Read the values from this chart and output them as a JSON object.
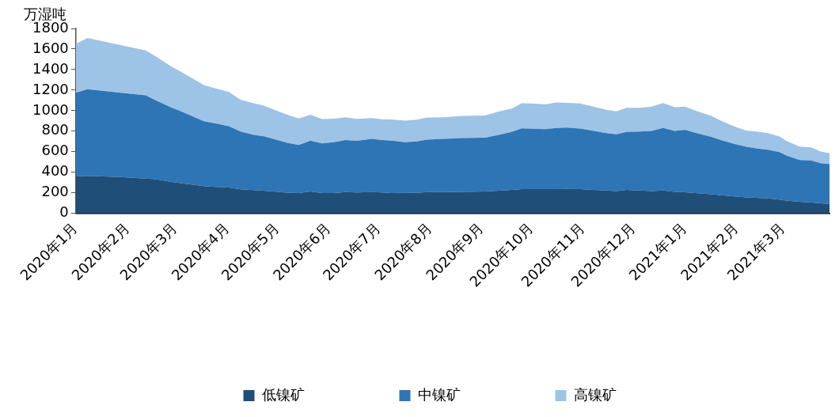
{
  "chart_data": {
    "type": "area",
    "stacked": true,
    "ylabel": "万湿吨",
    "legend": "bottom",
    "grid": false,
    "x": [
      "2020-01-01",
      "2020-01-08",
      "2020-01-28",
      "2020-02-12",
      "2020-02-18",
      "2020-02-27",
      "2020-03-04",
      "2020-03-18",
      "2020-03-25",
      "2020-04-02",
      "2020-04-09",
      "2020-04-17",
      "2020-04-23",
      "2020-05-07",
      "2020-05-14",
      "2020-05-21",
      "2020-05-28",
      "2020-06-04",
      "2020-06-11",
      "2020-06-18",
      "2020-06-27",
      "2020-07-03",
      "2020-07-09",
      "2020-07-17",
      "2020-07-24",
      "2020-07-30",
      "2020-08-09",
      "2020-08-20",
      "2020-09-03",
      "2020-09-11",
      "2020-09-19",
      "2020-09-25",
      "2020-10-03",
      "2020-10-09",
      "2020-10-16",
      "2020-10-22",
      "2020-10-30",
      "2020-11-07",
      "2020-11-15",
      "2020-11-21",
      "2020-11-27",
      "2020-12-05",
      "2020-12-12",
      "2020-12-19",
      "2020-12-26",
      "2021-01-01",
      "2021-01-09",
      "2021-01-17",
      "2021-01-23",
      "2021-01-31",
      "2021-02-07",
      "2021-02-13",
      "2021-02-20",
      "2021-02-27",
      "2021-03-03",
      "2021-03-11",
      "2021-03-18",
      "2021-03-24",
      "2021-03-29"
    ],
    "xlim": [
      "2020-01-01",
      "2021-03-29"
    ],
    "xticks": [
      {
        "value": "2020-01",
        "label": "2020年1月"
      },
      {
        "value": "2020-02",
        "label": "2020年2月"
      },
      {
        "value": "2020-03",
        "label": "2020年3月"
      },
      {
        "value": "2020-04",
        "label": "2020年4月"
      },
      {
        "value": "2020-05",
        "label": "2020年5月"
      },
      {
        "value": "2020-06",
        "label": "2020年6月"
      },
      {
        "value": "2020-07",
        "label": "2020年7月"
      },
      {
        "value": "2020-08",
        "label": "2020年8月"
      },
      {
        "value": "2020-09",
        "label": "2020年9月"
      },
      {
        "value": "2020-10",
        "label": "2020年10月"
      },
      {
        "value": "2020-11",
        "label": "2020年11月"
      },
      {
        "value": "2020-12",
        "label": "2020年12月"
      },
      {
        "value": "2021-01",
        "label": "2021年1月"
      },
      {
        "value": "2021-02",
        "label": "2021年2月"
      },
      {
        "value": "2021-03",
        "label": "2021年3月"
      }
    ],
    "ylim": [
      0,
      1800
    ],
    "yticks": [
      0,
      200,
      400,
      600,
      800,
      1000,
      1200,
      1400,
      1600,
      1800
    ],
    "series": [
      {
        "name": "低镍矿",
        "color": "#1f4e79",
        "values": [
          360,
          366,
          354,
          339,
          333,
          308,
          295,
          265,
          258,
          251,
          234,
          227,
          221,
          202,
          198,
          213,
          198,
          198,
          208,
          204,
          208,
          203,
          198,
          199,
          200,
          207,
          208,
          210,
          213,
          221,
          228,
          236,
          236,
          236,
          236,
          238,
          236,
          229,
          223,
          217,
          229,
          223,
          217,
          223,
          210,
          205,
          196,
          186,
          177,
          166,
          156,
          152,
          145,
          135,
          124,
          114,
          105,
          97,
          90
        ]
      },
      {
        "name": "中镍矿",
        "color": "#2e75b6",
        "values": [
          815,
          842,
          821,
          811,
          768,
          726,
          701,
          632,
          618,
          597,
          562,
          537,
          529,
          485,
          467,
          495,
          484,
          495,
          506,
          502,
          518,
          511,
          511,
          494,
          501,
          511,
          517,
          523,
          524,
          543,
          564,
          591,
          587,
          583,
          596,
          598,
          590,
          575,
          558,
          552,
          563,
          574,
          585,
          609,
          592,
          610,
          581,
          559,
          535,
          510,
          493,
          482,
          474,
          461,
          440,
          406,
          411,
          389,
          390
        ]
      },
      {
        "name": "高镍矿",
        "color": "#9dc3e6",
        "values": [
          474,
          499,
          463,
          437,
          428,
          400,
          385,
          352,
          341,
          333,
          311,
          308,
          299,
          273,
          259,
          252,
          236,
          229,
          221,
          214,
          201,
          202,
          205,
          210,
          211,
          215,
          210,
          215,
          215,
          228,
          229,
          245,
          245,
          242,
          248,
          240,
          244,
          236,
          228,
          225,
          236,
          231,
          238,
          242,
          232,
          225,
          215,
          203,
          189,
          169,
          157,
          162,
          162,
          152,
          142,
          131,
          126,
          114,
          106
        ]
      }
    ]
  }
}
